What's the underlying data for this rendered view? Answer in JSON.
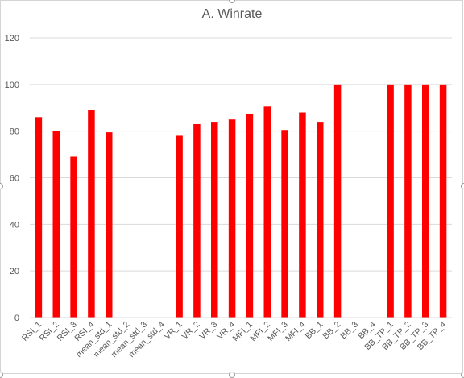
{
  "chart_data": {
    "type": "bar",
    "title": "A. Winrate",
    "xlabel": "",
    "ylabel": "",
    "ylim": [
      0,
      120
    ],
    "yticks": [
      0,
      20,
      40,
      60,
      80,
      100,
      120
    ],
    "grid": true,
    "legend": "none",
    "bar_color": "#ff0000",
    "categories": [
      "RSI_1",
      "RSI_2",
      "RSI_3",
      "RSI_4",
      "mean_std_1",
      "mean_std_2",
      "mean_std_3",
      "mean_std_4",
      "VR_1",
      "VR_2",
      "VR_3",
      "VR_4",
      "MFI_1",
      "MFI_2",
      "MFI_3",
      "MFI_4",
      "BB_1",
      "BB_2",
      "BB_3",
      "BB_4",
      "BB_TP_1",
      "BB_TP_2",
      "BB_TP_3",
      "BB_TP_4"
    ],
    "values": [
      86,
      80,
      69,
      89,
      79.5,
      null,
      null,
      null,
      78,
      83,
      84,
      85,
      87.5,
      90.5,
      80.5,
      88,
      84,
      100,
      null,
      null,
      100,
      100,
      100,
      100
    ]
  }
}
